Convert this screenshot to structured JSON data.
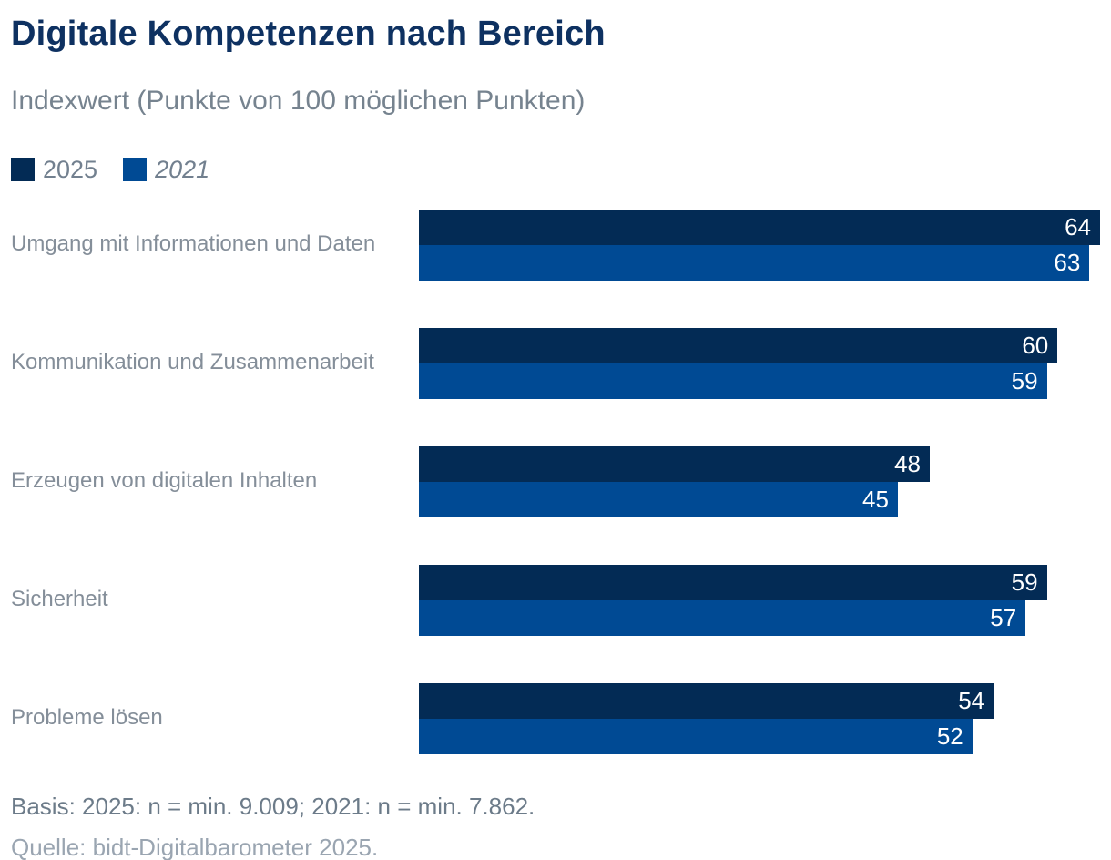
{
  "title": "Digitale Kompetenzen nach Bereich",
  "subtitle": "Indexwert (Punkte von 100 möglichen Punkten)",
  "legend": [
    {
      "label": "2025",
      "color": "#032b55",
      "italic": false
    },
    {
      "label": "2021",
      "color": "#004a94",
      "italic": true
    }
  ],
  "chart_data": {
    "type": "bar",
    "orientation": "horizontal",
    "title": "Digitale Kompetenzen nach Bereich",
    "subtitle": "Indexwert (Punkte von 100 möglichen Punkten)",
    "categories": [
      "Umgang mit Informationen und Daten",
      "Kommunikation und Zusammenarbeit",
      "Erzeugen von digitalen Inhalten",
      "Sicherheit",
      "Probleme lösen"
    ],
    "series": [
      {
        "name": "2025",
        "color": "#032b55",
        "values": [
          64,
          60,
          48,
          59,
          54
        ]
      },
      {
        "name": "2021",
        "color": "#004a94",
        "values": [
          63,
          59,
          45,
          57,
          52
        ]
      }
    ],
    "xlim": [
      0,
      64
    ],
    "value_labels": "inside-end",
    "value_label_color": "#ffffff",
    "grid": false,
    "legend_position": "top-left",
    "xlabel": "",
    "ylabel": ""
  },
  "footer": {
    "basis": "Basis: 2025: n = min. 9.009; 2021: n = min. 7.862.",
    "quelle": "Quelle: bidt-Digitalbarometer 2025."
  }
}
